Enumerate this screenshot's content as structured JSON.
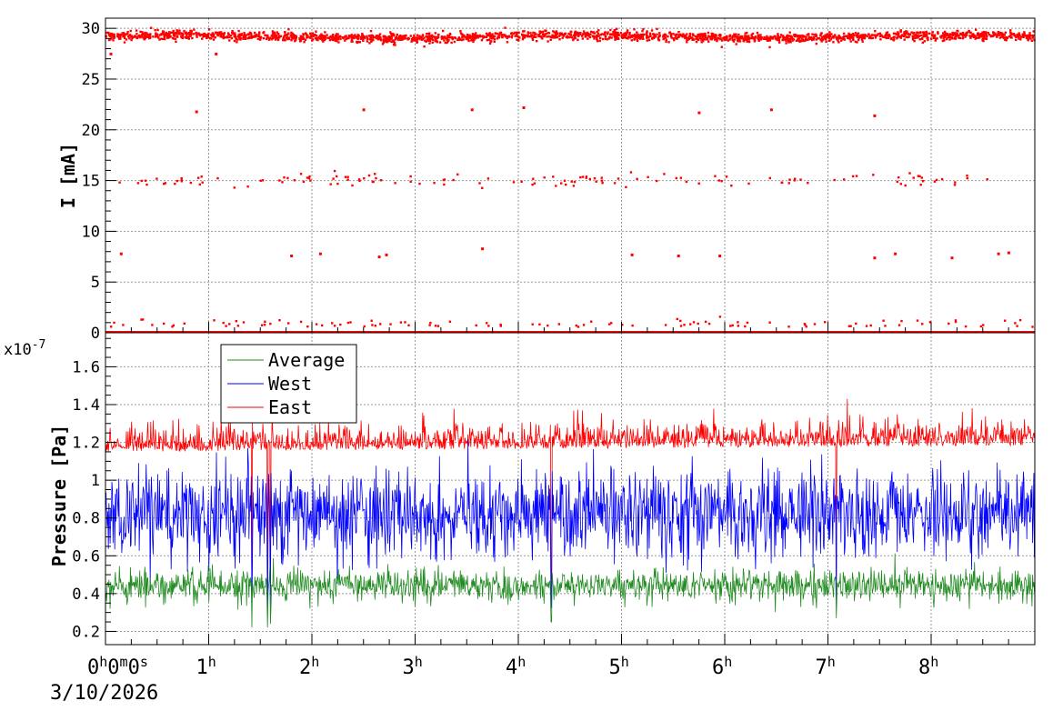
{
  "chart_data": [
    {
      "type": "scatter",
      "ylabel": "I [mA]",
      "ylim": [
        0,
        31
      ],
      "yticks": [
        0,
        5,
        10,
        15,
        20,
        25,
        30
      ],
      "grid": true,
      "x_hours_range": [
        0,
        9
      ],
      "series": [
        {
          "name": "",
          "color": "#ff0000",
          "baseline_level": 29.2,
          "bands": [
            {
              "level": 15.0,
              "count": 140
            },
            {
              "level": 0.6,
              "count": 110
            }
          ],
          "isolated_points": [
            {
              "x_h": 0.05,
              "y": 27.5
            },
            {
              "x_h": 1.07,
              "y": 27.5
            },
            {
              "x_h": 0.88,
              "y": 21.8
            },
            {
              "x_h": 2.5,
              "y": 22.0
            },
            {
              "x_h": 3.55,
              "y": 22.0
            },
            {
              "x_h": 4.05,
              "y": 22.2
            },
            {
              "x_h": 5.75,
              "y": 21.7
            },
            {
              "x_h": 6.45,
              "y": 22.0
            },
            {
              "x_h": 7.45,
              "y": 21.4
            },
            {
              "x_h": 0.15,
              "y": 7.8
            },
            {
              "x_h": 1.8,
              "y": 7.6
            },
            {
              "x_h": 2.08,
              "y": 7.8
            },
            {
              "x_h": 2.65,
              "y": 7.5
            },
            {
              "x_h": 2.72,
              "y": 7.7
            },
            {
              "x_h": 3.65,
              "y": 8.3
            },
            {
              "x_h": 5.1,
              "y": 7.7
            },
            {
              "x_h": 5.55,
              "y": 7.6
            },
            {
              "x_h": 5.95,
              "y": 7.6
            },
            {
              "x_h": 7.45,
              "y": 7.4
            },
            {
              "x_h": 7.65,
              "y": 7.8
            },
            {
              "x_h": 8.2,
              "y": 7.4
            },
            {
              "x_h": 8.65,
              "y": 7.8
            },
            {
              "x_h": 8.75,
              "y": 7.9
            }
          ]
        }
      ]
    },
    {
      "type": "line",
      "ylabel": "Pressure [Pa]",
      "multiplier_label": "x10",
      "multiplier_exp": "-7",
      "ylim": [
        0.13,
        1.78
      ],
      "yticks": [
        "0.2",
        "0.4",
        "0.6",
        "0.8",
        "1",
        "1.2",
        "1.4",
        "1.6"
      ],
      "grid": true,
      "legend": {
        "placement": "top-left",
        "entries": [
          "Average",
          "West",
          "East"
        ]
      },
      "series": [
        {
          "name": "Average",
          "color": "#228b22",
          "mean": 0.445,
          "noise": 0.045,
          "spike_max": 0.07
        },
        {
          "name": "West",
          "color": "#0000ff",
          "mean": 0.82,
          "noise": 0.13,
          "spike_max": 0.15
        },
        {
          "name": "East",
          "color": "#ff0000",
          "mean": 1.2,
          "noise": 0.06,
          "spike_max": 0.14,
          "upward_only": true
        }
      ],
      "dips": [
        {
          "x_h": 1.42,
          "y_min": 0.22
        },
        {
          "x_h": 1.57,
          "y_min": 0.22
        },
        {
          "x_h": 1.6,
          "y_min": 0.24
        },
        {
          "x_h": 4.32,
          "y_min": 0.25
        },
        {
          "x_h": 7.08,
          "y_min": 0.27
        }
      ]
    }
  ],
  "time_axis": {
    "range_hours": [
      0,
      9
    ],
    "ticks": [
      {
        "h": 0,
        "label": "0",
        "sup": "h",
        "extra": "0m0s"
      },
      {
        "h": 1,
        "label": "1",
        "sup": "h"
      },
      {
        "h": 2,
        "label": "2",
        "sup": "h"
      },
      {
        "h": 3,
        "label": "3",
        "sup": "h"
      },
      {
        "h": 4,
        "label": "4",
        "sup": "h"
      },
      {
        "h": 5,
        "label": "5",
        "sup": "h"
      },
      {
        "h": 6,
        "label": "6",
        "sup": "h"
      },
      {
        "h": 7,
        "label": "7",
        "sup": "h"
      },
      {
        "h": 8,
        "label": "8",
        "sup": "h"
      }
    ],
    "date": "3/10/2026"
  }
}
